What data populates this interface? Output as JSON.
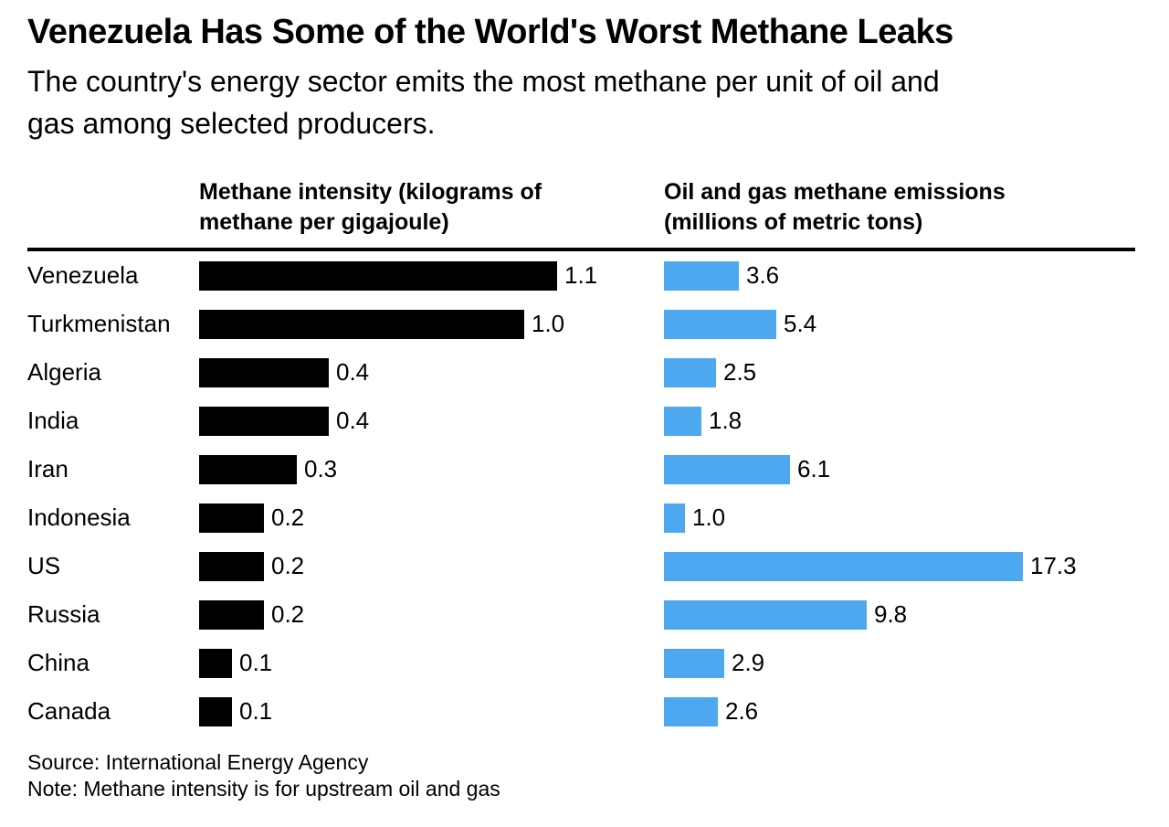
{
  "header": {
    "title": "Venezuela Has Some of the World's Worst Methane Leaks",
    "subtitle_lines": [
      "The country's energy sector emits the most methane per unit of oil and",
      "gas among selected producers."
    ]
  },
  "columns": {
    "left_header_lines": [
      "Methane intensity (kilograms of",
      "methane per gigajoule)"
    ],
    "right_header_lines": [
      "Oil and gas methane emissions",
      "(millions of metric tons)"
    ]
  },
  "chart_data": {
    "type": "bar",
    "orientation": "horizontal",
    "categories": [
      "Venezuela",
      "Turkmenistan",
      "Algeria",
      "India",
      "Iran",
      "Indonesia",
      "US",
      "Russia",
      "China",
      "Canada"
    ],
    "series": [
      {
        "name": "Methane intensity (kilograms of methane per gigajoule)",
        "values": [
          1.1,
          1.0,
          0.4,
          0.4,
          0.3,
          0.2,
          0.2,
          0.2,
          0.1,
          0.1
        ],
        "color": "#000000",
        "xlim": [
          0,
          1.45
        ]
      },
      {
        "name": "Oil and gas methane emissions (millions of metric tons)",
        "values": [
          3.6,
          5.4,
          2.5,
          1.8,
          6.1,
          1.0,
          17.3,
          9.8,
          2.9,
          2.6
        ],
        "color": "#4DA8F0",
        "xlim": [
          0,
          23
        ]
      }
    ],
    "value_labels": true,
    "value_label_decimals": 1,
    "grid": false,
    "legend": "none"
  },
  "footer": {
    "source": "Source: International Energy Agency",
    "note": "Note: Methane intensity is for upstream oil and gas"
  },
  "colors": {
    "background": "#FFFFFF",
    "text": "#000000",
    "intensity_bar": "#000000",
    "emissions_bar": "#4DA8F0",
    "header_rule": "#000000"
  }
}
